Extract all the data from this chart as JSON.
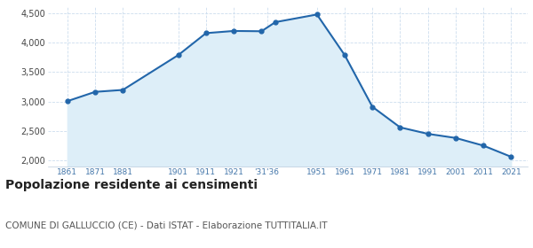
{
  "years": [
    1861,
    1871,
    1881,
    1901,
    1911,
    1921,
    1931,
    1936,
    1951,
    1961,
    1971,
    1981,
    1991,
    2001,
    2011,
    2021
  ],
  "population": [
    3006,
    3164,
    3197,
    3790,
    4163,
    4200,
    4195,
    4350,
    4480,
    3790,
    2910,
    2560,
    2450,
    2380,
    2250,
    2060
  ],
  "x_tick_positions": [
    1861,
    1871,
    1881,
    1901,
    1911,
    1921,
    1933,
    1951,
    1961,
    1971,
    1981,
    1991,
    2001,
    2011,
    2021
  ],
  "x_tick_labels": [
    "1861",
    "1871",
    "1881",
    "1901",
    "1911",
    "1921",
    "'31'36",
    "1951",
    "1961",
    "1971",
    "1981",
    "1991",
    "2001",
    "2011",
    "2021"
  ],
  "line_color": "#2266aa",
  "fill_color": "#ddeef8",
  "marker_color": "#2266aa",
  "grid_color": "#ccddee",
  "background_color": "#ffffff",
  "ylim": [
    1900,
    4600
  ],
  "yticks": [
    2000,
    2500,
    3000,
    3500,
    4000,
    4500
  ],
  "ytick_labels": [
    "2,000",
    "2,500",
    "3,000",
    "3,500",
    "4,000",
    "4,500"
  ],
  "title": "Popolazione residente ai censimenti",
  "subtitle": "COMUNE DI GALLUCCIO (CE) - Dati ISTAT - Elaborazione TUTTITALIA.IT",
  "title_fontsize": 10,
  "subtitle_fontsize": 7.5,
  "title_color": "#222222",
  "subtitle_color": "#555555",
  "tick_color": "#4477aa"
}
